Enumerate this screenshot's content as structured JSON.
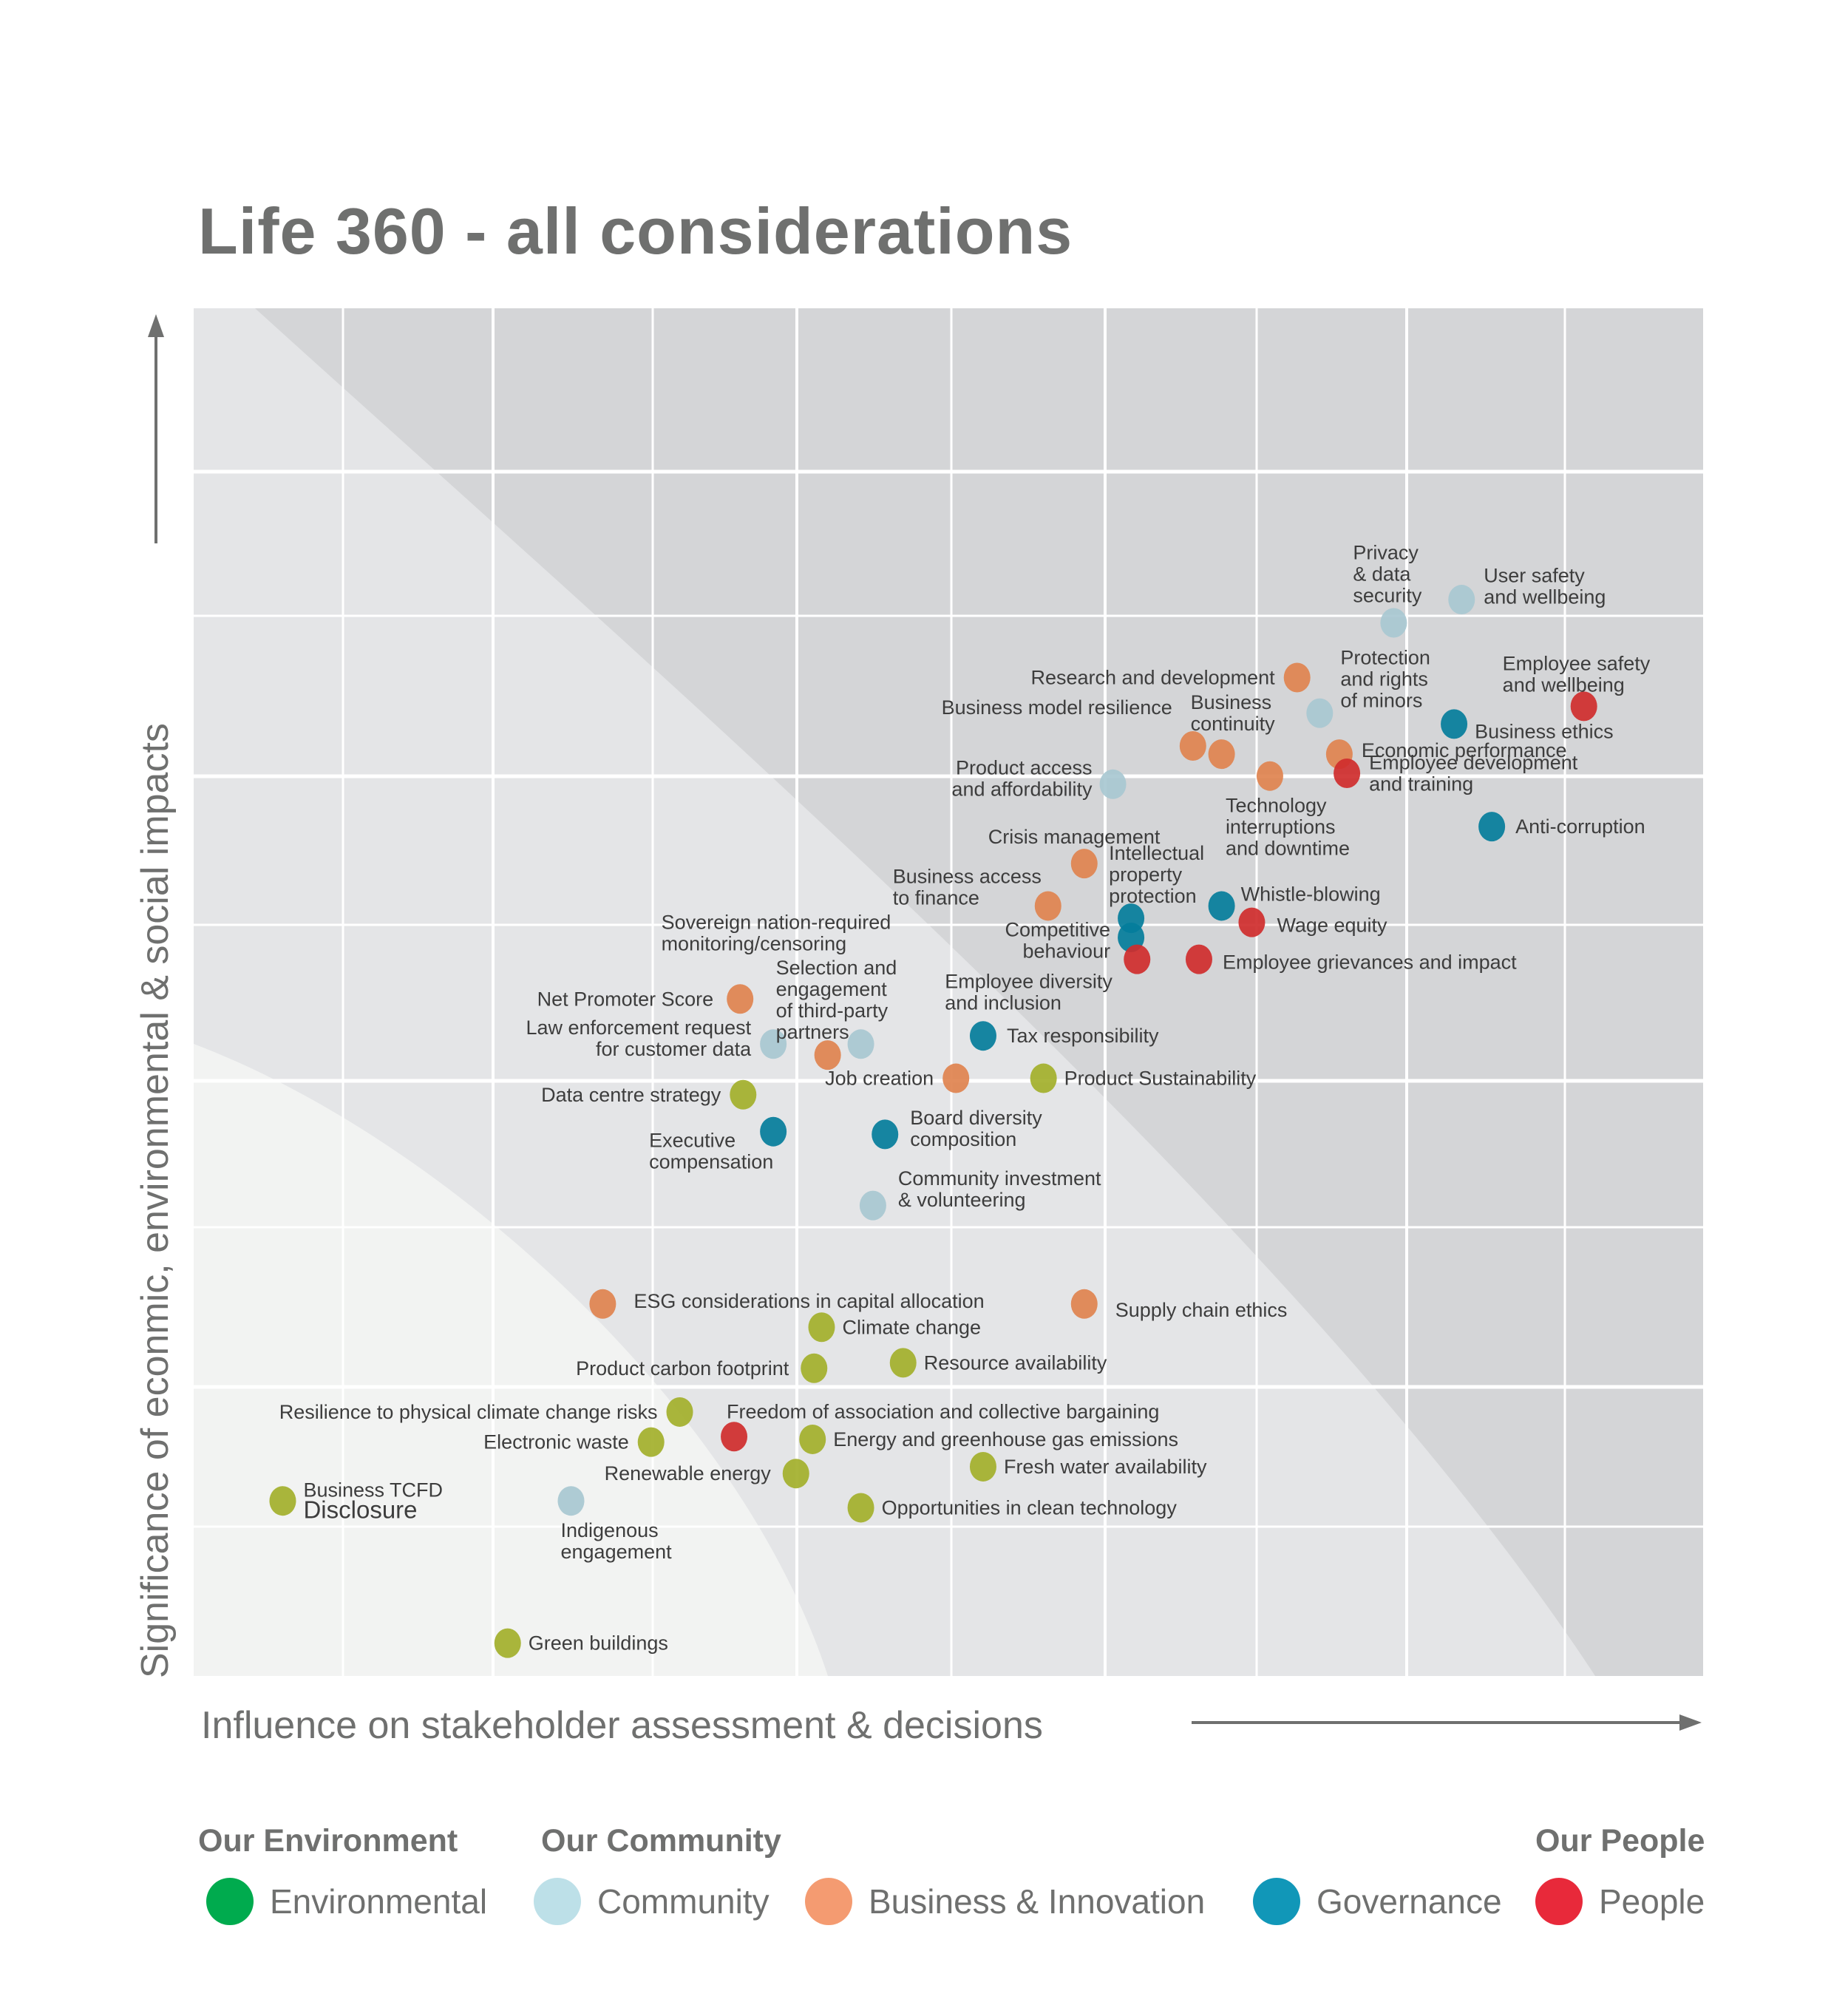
{
  "title": "Life 360  - all considerations",
  "chart_data": {
    "type": "scatter",
    "title": "Life 360  - all considerations",
    "xlabel": "Influence on stakeholder assessment & decisions",
    "ylabel": "Significance of econmic, environmental & social impacts",
    "xlim": [
      0,
      100
    ],
    "ylim": [
      0,
      100
    ],
    "grid": true,
    "legend_position": "bottom",
    "categories": {
      "Environmental": "#a3b02b",
      "Community": "#a8c8d1",
      "Business & Innovation": "#e0834f",
      "Governance": "#047d9b",
      "People": "#cf2c2c"
    },
    "points": [
      {
        "label": [
          "Privacy",
          "& data",
          "security"
        ],
        "category": "Community",
        "x": 79.5,
        "y": 77.0
      },
      {
        "label": [
          "User safety",
          "and wellbeing"
        ],
        "category": "Community",
        "x": 84.0,
        "y": 78.7
      },
      {
        "label": [
          "Research and development"
        ],
        "category": "Business & Innovation",
        "x": 73.1,
        "y": 73.0
      },
      {
        "label": [
          "Protection",
          "and rights",
          "of minors"
        ],
        "category": "Community",
        "x": 74.6,
        "y": 70.4
      },
      {
        "label": [
          "Employee safety",
          "and wellbeing"
        ],
        "category": "People",
        "x": 92.1,
        "y": 70.9
      },
      {
        "label": [
          "Business ethics"
        ],
        "category": "Governance",
        "x": 83.5,
        "y": 69.6
      },
      {
        "label": [
          "Business model resilience"
        ],
        "category": "Business & Innovation",
        "x": 66.2,
        "y": 68.0
      },
      {
        "label": [
          "Business",
          "continuity"
        ],
        "category": "Business & Innovation",
        "x": 68.1,
        "y": 67.4
      },
      {
        "label": [
          "Economic performance"
        ],
        "category": "Business & Innovation",
        "x": 75.9,
        "y": 67.4
      },
      {
        "label": [
          "Technology",
          "interruptions",
          "and downtime"
        ],
        "category": "Business & Innovation",
        "x": 71.3,
        "y": 65.8
      },
      {
        "label": [
          "Employee development",
          "and training"
        ],
        "category": "People",
        "x": 76.4,
        "y": 66.0
      },
      {
        "label": [
          "Product access",
          "and affordability"
        ],
        "category": "Community",
        "x": 60.9,
        "y": 65.2
      },
      {
        "label": [
          "Anti-corruption"
        ],
        "category": "Governance",
        "x": 86.0,
        "y": 62.1
      },
      {
        "label": [
          "Crisis management"
        ],
        "category": "Business & Innovation",
        "x": 59.0,
        "y": 59.4
      },
      {
        "label": [
          "Business access",
          "to finance"
        ],
        "category": "Business & Innovation",
        "x": 56.6,
        "y": 56.3
      },
      {
        "label": [
          "Intellectual",
          "property",
          "protection"
        ],
        "category": "Governance",
        "x": 62.1,
        "y": 55.4
      },
      {
        "label": [
          "Whistle-blowing"
        ],
        "category": "Governance",
        "x": 68.1,
        "y": 56.3
      },
      {
        "label": [
          "Wage equity"
        ],
        "category": "People",
        "x": 70.1,
        "y": 55.1
      },
      {
        "label": [
          "Competitive",
          "behaviour"
        ],
        "category": "Governance",
        "x": 62.1,
        "y": 54.0
      },
      {
        "label": [
          "Employee diversity",
          "and inclusion"
        ],
        "category": "People",
        "x": 62.5,
        "y": 52.4
      },
      {
        "label": [
          "Employee grievances and impact"
        ],
        "category": "People",
        "x": 66.6,
        "y": 52.4
      },
      {
        "label": [
          "Net Promoter Score"
        ],
        "category": "Business & Innovation",
        "x": 36.2,
        "y": 49.5
      },
      {
        "label": [
          "Law enforcement request",
          "for customer data"
        ],
        "category": "Community",
        "x": 38.4,
        "y": 46.2
      },
      {
        "label": [
          "Selection and",
          "engagement",
          "of third-party",
          "partners"
        ],
        "category": "Business & Innovation",
        "x": 42.0,
        "y": 45.4
      },
      {
        "label": [
          "Sovereign nation-required",
          "monitoring/censoring"
        ],
        "category": "Community",
        "x": 44.2,
        "y": 46.2
      },
      {
        "label": [
          "Tax responsibility"
        ],
        "category": "Governance",
        "x": 52.3,
        "y": 46.8
      },
      {
        "label": [
          "Job creation"
        ],
        "category": "Business & Innovation",
        "x": 50.5,
        "y": 43.7
      },
      {
        "label": [
          "Product Sustainability"
        ],
        "category": "Environmental",
        "x": 56.3,
        "y": 43.7
      },
      {
        "label": [
          "Data centre strategy"
        ],
        "category": "Environmental",
        "x": 36.4,
        "y": 42.5
      },
      {
        "label": [
          "Executive",
          "compensation"
        ],
        "category": "Governance",
        "x": 38.4,
        "y": 39.8
      },
      {
        "label": [
          "Board diversity",
          "composition"
        ],
        "category": "Governance",
        "x": 45.8,
        "y": 39.6
      },
      {
        "label": [
          "Community investment",
          "& volunteering"
        ],
        "category": "Community",
        "x": 45.0,
        "y": 34.4
      },
      {
        "label": [
          "ESG considerations in capital allocation"
        ],
        "category": "Business & Innovation",
        "x": 27.1,
        "y": 27.2
      },
      {
        "label": [
          "Supply chain ethics"
        ],
        "category": "Business & Innovation",
        "x": 59.0,
        "y": 27.2
      },
      {
        "label": [
          "Climate change"
        ],
        "category": "Environmental",
        "x": 41.6,
        "y": 25.5
      },
      {
        "label": [
          "Product carbon footprint"
        ],
        "category": "Environmental",
        "x": 41.1,
        "y": 22.5
      },
      {
        "label": [
          "Resource availability"
        ],
        "category": "Environmental",
        "x": 47.0,
        "y": 22.9
      },
      {
        "label": [
          "Resilience to physical climate change risks"
        ],
        "category": "Environmental",
        "x": 32.2,
        "y": 19.3
      },
      {
        "label": [
          "Electronic waste"
        ],
        "category": "Environmental",
        "x": 30.3,
        "y": 17.1
      },
      {
        "label": [
          "Freedom of association and collective bargaining"
        ],
        "category": "People",
        "x": 35.8,
        "y": 17.5
      },
      {
        "label": [
          "Energy and greenhouse gas emissions"
        ],
        "category": "Environmental",
        "x": 41.0,
        "y": 17.3
      },
      {
        "label": [
          "Fresh water availability"
        ],
        "category": "Environmental",
        "x": 52.3,
        "y": 15.3
      },
      {
        "label": [
          "Renewable energy"
        ],
        "category": "Environmental",
        "x": 39.9,
        "y": 14.8
      },
      {
        "label": [
          "Business TCFD",
          "Disclosure"
        ],
        "category": "Environmental",
        "x": 5.9,
        "y": 12.8
      },
      {
        "label": [
          "Indigenous",
          "engagement"
        ],
        "category": "Community",
        "x": 25.0,
        "y": 12.8
      },
      {
        "label": [
          "Opportunities in clean technology"
        ],
        "category": "Environmental",
        "x": 44.2,
        "y": 12.3
      },
      {
        "label": [
          "Green buildings"
        ],
        "category": "Environmental",
        "x": 20.8,
        "y": 2.4
      }
    ]
  },
  "legend": {
    "groups": [
      {
        "heading": "Our Environment"
      },
      {
        "heading": "Our Community"
      },
      {
        "heading": "Our People"
      }
    ],
    "items": [
      {
        "label": "Environmental",
        "color": "#00ab4e"
      },
      {
        "label": "Community",
        "color": "#bde0e8"
      },
      {
        "label": "Business & Innovation",
        "color": "#f49b71"
      },
      {
        "label": "Governance",
        "color": "#1197b8"
      },
      {
        "label": "People",
        "color": "#e8293a"
      }
    ]
  },
  "axis_icons": {
    "y_arrow": "arrow-up-icon",
    "x_arrow": "arrow-right-icon"
  }
}
